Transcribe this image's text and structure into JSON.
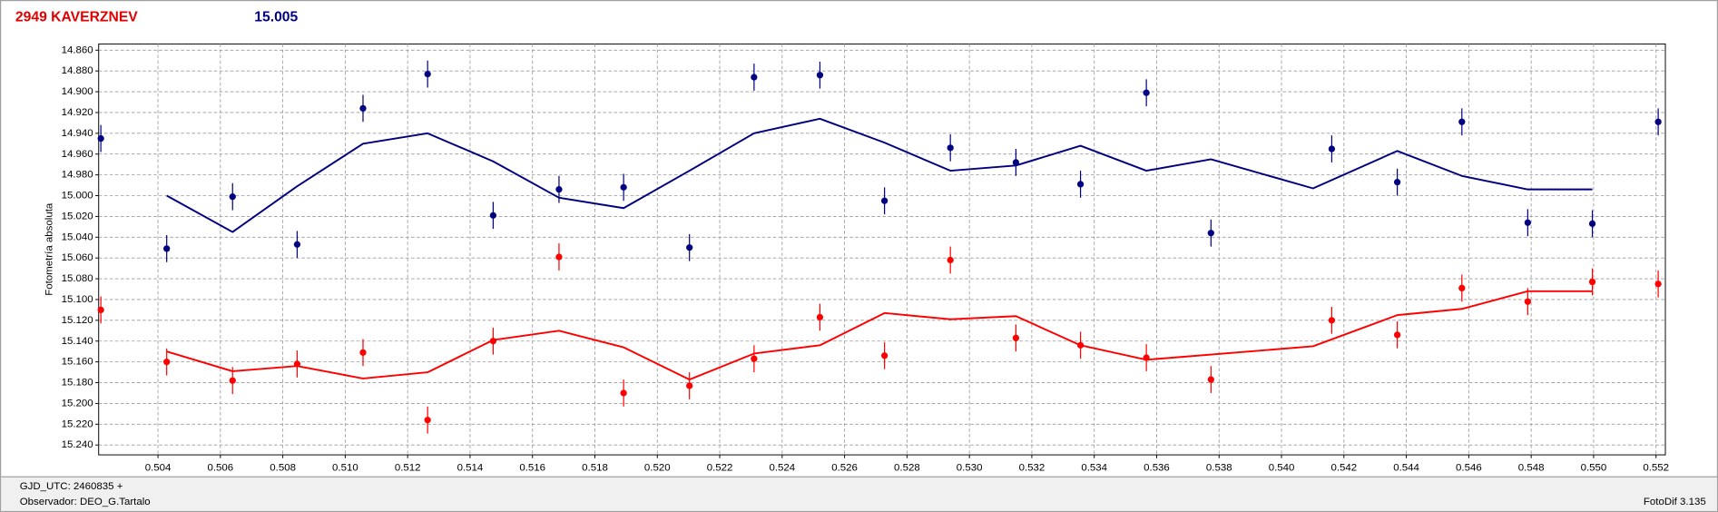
{
  "chart_data": {
    "type": "scatter",
    "title": "2949 KAVERZNEV",
    "subtitle": "15.005",
    "y_label": "Fotometría absoluta",
    "grid": true,
    "xlim": [
      0.5021,
      0.5523
    ],
    "ylim": [
      15.2495,
      14.854
    ],
    "xticks": [
      0.504,
      0.506,
      0.508,
      {
        "value": 0.51,
        "label": "0.510"
      },
      0.512,
      0.514,
      0.516,
      0.518,
      {
        "value": 0.52,
        "label": "0.520"
      },
      0.522,
      0.524,
      0.526,
      0.528,
      {
        "value": 0.53,
        "label": "0.530"
      },
      0.532,
      0.534,
      0.536,
      0.538,
      {
        "value": 0.54,
        "label": "0.540"
      },
      0.542,
      0.544,
      0.546,
      0.548,
      {
        "value": 0.55,
        "label": "0.550"
      },
      0.552
    ],
    "yticks": [
      {
        "value": 14.86,
        "label": "14.860"
      },
      {
        "value": 14.88,
        "label": "14.880"
      },
      {
        "value": 14.9,
        "label": "14.900"
      },
      {
        "value": 14.92,
        "label": "14.920"
      },
      {
        "value": 14.94,
        "label": "14.940"
      },
      {
        "value": 14.96,
        "label": "14.960"
      },
      {
        "value": 14.98,
        "label": "14.980"
      },
      {
        "value": 15.0,
        "label": "15.000"
      },
      {
        "value": 15.02,
        "label": "15.020"
      },
      {
        "value": 15.04,
        "label": "15.040"
      },
      {
        "value": 15.06,
        "label": "15.060"
      },
      {
        "value": 15.08,
        "label": "15.080"
      },
      {
        "value": 15.1,
        "label": "15.100"
      },
      {
        "value": 15.12,
        "label": "15.120"
      },
      {
        "value": 15.14,
        "label": "15.140"
      },
      {
        "value": 15.16,
        "label": "15.160"
      },
      {
        "value": 15.18,
        "label": "15.180"
      },
      {
        "value": 15.2,
        "label": "15.200"
      },
      {
        "value": 15.22,
        "label": "15.220"
      },
      {
        "value": 15.24,
        "label": "15.240"
      }
    ],
    "series": [
      {
        "type": "scatter",
        "color": "#000080",
        "x": [
          0.50217,
          0.50428,
          0.50639,
          0.50846,
          0.51057,
          0.51264,
          0.51474,
          0.51685,
          0.51892,
          0.52103,
          0.5231,
          0.52521,
          0.52728,
          0.52939,
          0.53149,
          0.53356,
          0.53567,
          0.53774,
          0.54161,
          0.54371,
          0.54578,
          0.54789,
          0.54996,
          0.55207
        ],
        "values": [
          14.945,
          15.051,
          15.001,
          15.047,
          14.916,
          14.883,
          15.019,
          14.994,
          14.992,
          15.05,
          14.886,
          14.884,
          15.005,
          14.954,
          14.968,
          14.989,
          14.901,
          15.036,
          14.955,
          14.987,
          14.929,
          15.026,
          15.027,
          14.929
        ],
        "errors": [
          0.013,
          0.013,
          0.013,
          0.013,
          0.013,
          0.013,
          0.013,
          0.013,
          0.013,
          0.013,
          0.013,
          0.013,
          0.013,
          0.013,
          0.013,
          0.013,
          0.013,
          0.013,
          0.013,
          0.013,
          0.013,
          0.013,
          0.013,
          0.013
        ]
      },
      {
        "type": "scatter",
        "color": "#ff0000",
        "x": [
          0.50217,
          0.50428,
          0.50639,
          0.50846,
          0.51057,
          0.51264,
          0.51474,
          0.51685,
          0.51892,
          0.52103,
          0.5231,
          0.52521,
          0.52728,
          0.52939,
          0.53149,
          0.53356,
          0.53567,
          0.53774,
          0.54161,
          0.54371,
          0.54578,
          0.54789,
          0.54996,
          0.55207
        ],
        "values": [
          15.11,
          15.16,
          15.178,
          15.162,
          15.151,
          15.216,
          15.14,
          15.059,
          15.19,
          15.183,
          15.157,
          15.117,
          15.154,
          15.062,
          15.137,
          15.144,
          15.156,
          15.177,
          15.12,
          15.134,
          15.089,
          15.102,
          15.083,
          15.085
        ],
        "errors": [
          0.013,
          0.013,
          0.013,
          0.013,
          0.013,
          0.013,
          0.013,
          0.013,
          0.013,
          0.013,
          0.013,
          0.013,
          0.013,
          0.013,
          0.013,
          0.013,
          0.013,
          0.013,
          0.013,
          0.013,
          0.013,
          0.013,
          0.013,
          0.013
        ]
      },
      {
        "type": "line",
        "color": "#000080",
        "x": [
          0.50428,
          0.50639,
          0.50846,
          0.51057,
          0.51264,
          0.51474,
          0.51685,
          0.51892,
          0.52103,
          0.5231,
          0.52521,
          0.52728,
          0.52939,
          0.53149,
          0.53356,
          0.53567,
          0.53774,
          0.54101,
          0.54371,
          0.54578,
          0.54789,
          0.54996
        ],
        "values": [
          15.0,
          15.035,
          14.991,
          14.95,
          14.94,
          14.967,
          15.002,
          15.012,
          14.976,
          14.94,
          14.926,
          14.949,
          14.976,
          14.971,
          14.952,
          14.976,
          14.965,
          14.993,
          14.957,
          14.981,
          14.994,
          14.994
        ]
      },
      {
        "type": "line",
        "color": "#ff0000",
        "x": [
          0.50428,
          0.50639,
          0.50846,
          0.51057,
          0.51264,
          0.51474,
          0.51685,
          0.51892,
          0.52103,
          0.5231,
          0.52521,
          0.52728,
          0.52939,
          0.53149,
          0.53356,
          0.53567,
          0.54101,
          0.54371,
          0.54578,
          0.54789,
          0.54996
        ],
        "values": [
          15.15,
          15.169,
          15.164,
          15.176,
          15.17,
          15.139,
          15.13,
          15.146,
          15.177,
          15.152,
          15.144,
          15.113,
          15.119,
          15.116,
          15.144,
          15.158,
          15.145,
          15.115,
          15.109,
          15.092,
          15.092
        ]
      }
    ]
  },
  "footer": {
    "gjd": "GJD_UTC: 2460835 +",
    "observer": "Observador: DEO_G.Tartalo",
    "software": "FotoDif 3.135"
  }
}
